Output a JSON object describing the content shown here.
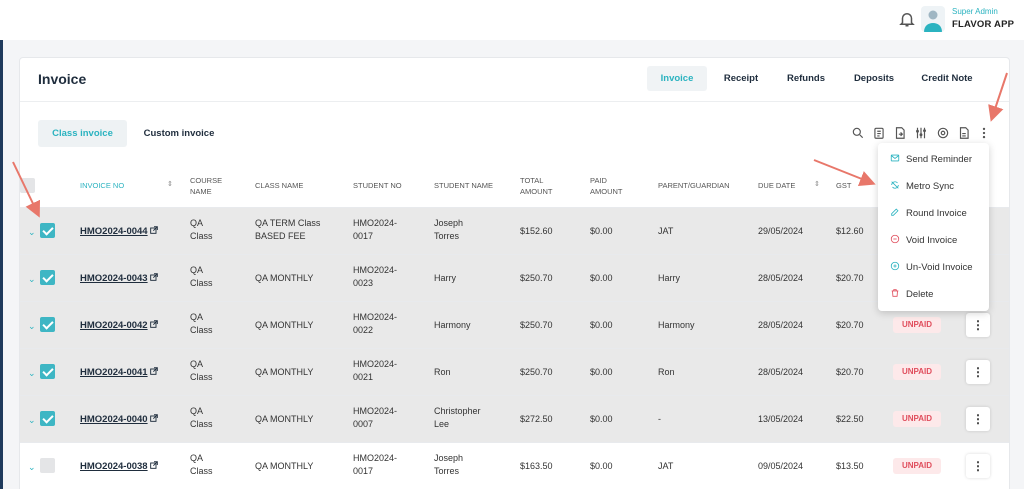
{
  "header": {
    "user_role": "Super Admin",
    "user_name": "FLAVOR APP"
  },
  "page": {
    "title": "Invoice"
  },
  "top_tabs": [
    "Invoice",
    "Receipt",
    "Refunds",
    "Deposits",
    "Credit Note"
  ],
  "sub_tabs": [
    "Class invoice",
    "Custom invoice"
  ],
  "toolbar_icons": [
    "search-icon",
    "clipboard-icon",
    "export-doc-icon",
    "filter-sliders-icon",
    "settings-gear-icon",
    "file-icon",
    "more-vertical-icon"
  ],
  "columns": [
    "INVOICE NO",
    "COURSE NAME",
    "CLASS NAME",
    "STUDENT NO",
    "STUDENT NAME",
    "TOTAL AMOUNT",
    "PAID AMOUNT",
    "PARENT/GUARDIAN",
    "DUE DATE",
    "GST"
  ],
  "rows": [
    {
      "invoice_no": "HMO2024-0044",
      "course": [
        "QA",
        "Class"
      ],
      "class_name": [
        "QA TERM Class",
        "BASED FEE"
      ],
      "student_no": [
        "HMO2024-",
        "0017"
      ],
      "student_name": [
        "Joseph",
        "Torres"
      ],
      "total": "$152.60",
      "paid": "$0.00",
      "parent": "JAT",
      "due_date": "29/05/2024",
      "gst": "$12.60",
      "status": "",
      "checked": true
    },
    {
      "invoice_no": "HMO2024-0043",
      "course": [
        "QA",
        "Class"
      ],
      "class_name": [
        "QA MONTHLY",
        ""
      ],
      "student_no": [
        "HMO2024-",
        "0023"
      ],
      "student_name": [
        "Harry",
        ""
      ],
      "total": "$250.70",
      "paid": "$0.00",
      "parent": "Harry",
      "due_date": "28/05/2024",
      "gst": "$20.70",
      "status": "",
      "checked": true
    },
    {
      "invoice_no": "HMO2024-0042",
      "course": [
        "QA",
        "Class"
      ],
      "class_name": [
        "QA MONTHLY",
        ""
      ],
      "student_no": [
        "HMO2024-",
        "0022"
      ],
      "student_name": [
        "Harmony",
        ""
      ],
      "total": "$250.70",
      "paid": "$0.00",
      "parent": "Harmony",
      "due_date": "28/05/2024",
      "gst": "$20.70",
      "status": "UNPAID",
      "checked": true
    },
    {
      "invoice_no": "HMO2024-0041",
      "course": [
        "QA",
        "Class"
      ],
      "class_name": [
        "QA MONTHLY",
        ""
      ],
      "student_no": [
        "HMO2024-",
        "0021"
      ],
      "student_name": [
        "Ron",
        ""
      ],
      "total": "$250.70",
      "paid": "$0.00",
      "parent": "Ron",
      "due_date": "28/05/2024",
      "gst": "$20.70",
      "status": "UNPAID",
      "checked": true
    },
    {
      "invoice_no": "HMO2024-0040",
      "course": [
        "QA",
        "Class"
      ],
      "class_name": [
        "QA MONTHLY",
        ""
      ],
      "student_no": [
        "HMO2024-",
        "0007"
      ],
      "student_name": [
        "Christopher",
        "Lee"
      ],
      "total": "$272.50",
      "paid": "$0.00",
      "parent": "-",
      "due_date": "13/05/2024",
      "gst": "$22.50",
      "status": "UNPAID",
      "checked": true
    },
    {
      "invoice_no": "HMO2024-0038",
      "course": [
        "QA",
        "Class"
      ],
      "class_name": [
        "QA MONTHLY",
        ""
      ],
      "student_no": [
        "HMO2024-",
        "0017"
      ],
      "student_name": [
        "Joseph",
        "Torres"
      ],
      "total": "$163.50",
      "paid": "$0.00",
      "parent": "JAT",
      "due_date": "09/05/2024",
      "gst": "$13.50",
      "status": "UNPAID",
      "checked": false
    }
  ],
  "dropdown_menu": [
    {
      "label": "Send Reminder",
      "icon": "mail-icon",
      "color": "#2bb3c0"
    },
    {
      "label": "Metro Sync",
      "icon": "sync-icon",
      "color": "#2bb3c0"
    },
    {
      "label": "Round Invoice",
      "icon": "edit-icon",
      "color": "#2bb3c0"
    },
    {
      "label": "Void Invoice",
      "icon": "minus-circle-icon",
      "color": "#e04e5d"
    },
    {
      "label": "Un-Void Invoice",
      "icon": "plus-circle-icon",
      "color": "#2bb3c0"
    },
    {
      "label": "Delete",
      "icon": "trash-icon",
      "color": "#e04e5d"
    }
  ],
  "colors": {
    "accent": "#2bb3c0",
    "danger": "#e04e5d",
    "annotation_arrow": "#e8776a"
  }
}
